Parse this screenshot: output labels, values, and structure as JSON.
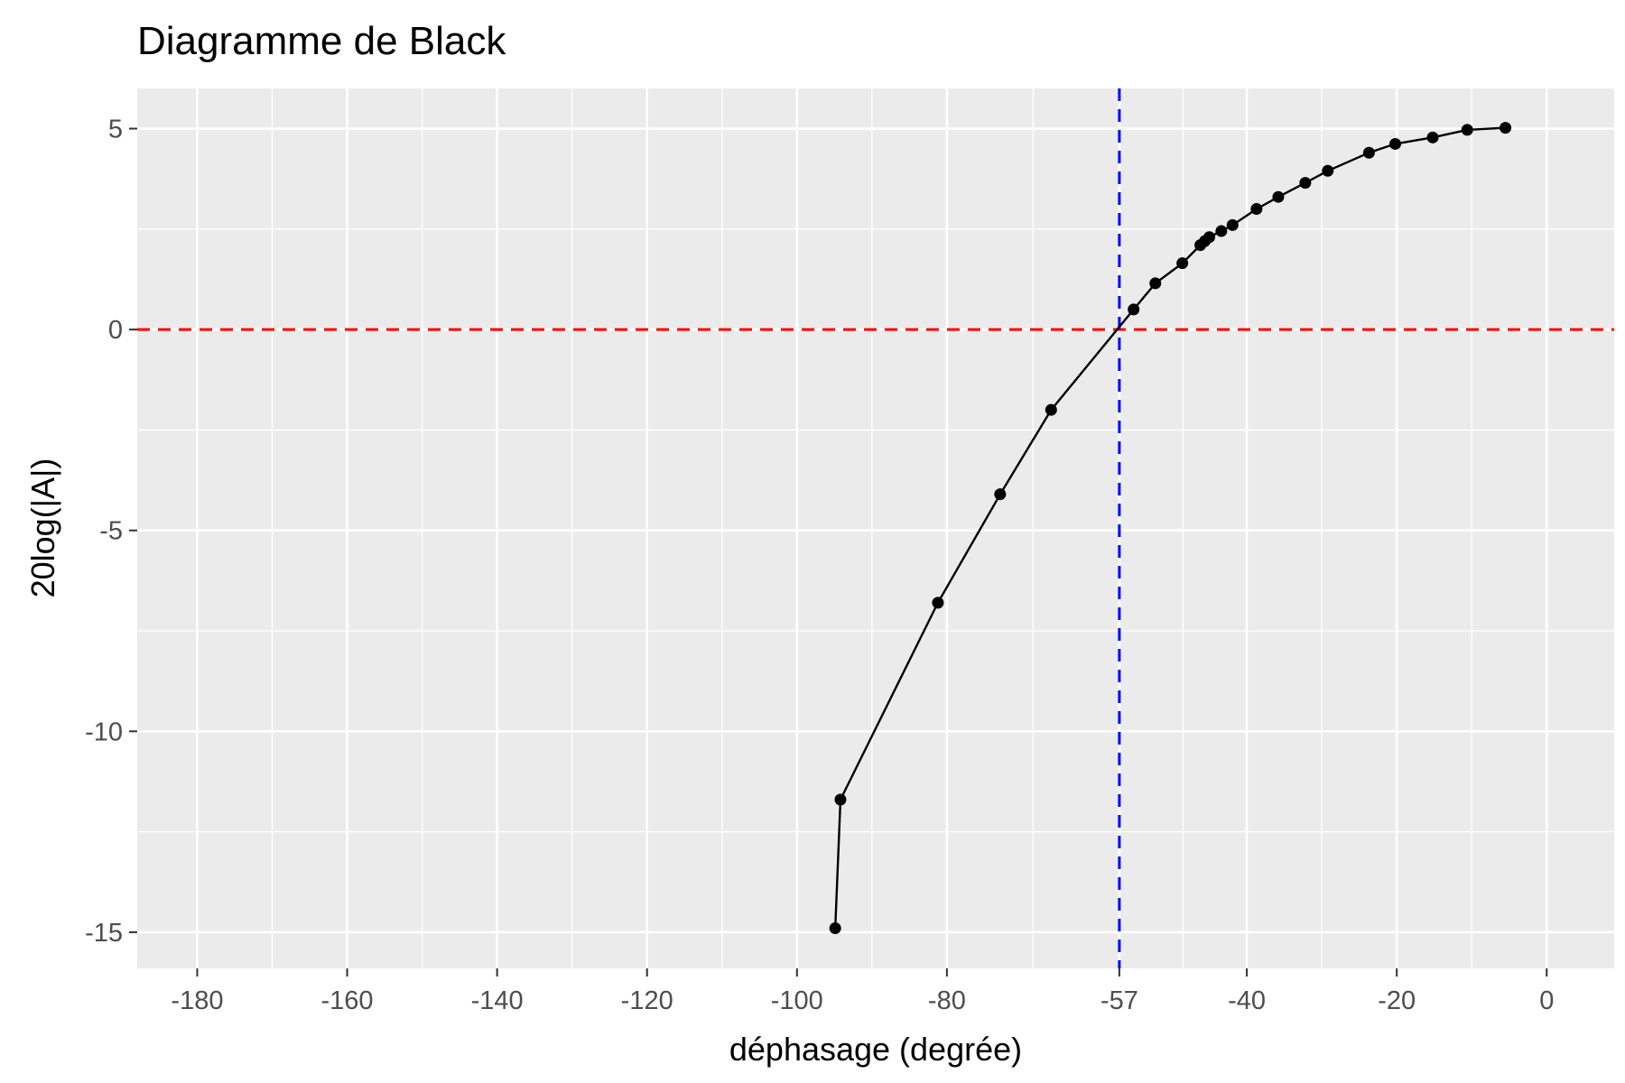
{
  "chart_data": {
    "type": "line",
    "title": "Diagramme de Black",
    "xlabel": "déphasage (degrée)",
    "ylabel": "20log(|A|)",
    "xlim": [
      -188,
      9
    ],
    "ylim": [
      -15.9,
      6.0
    ],
    "x_ticks": [
      -180,
      -160,
      -140,
      -120,
      -100,
      -80,
      -57,
      -40,
      -20,
      0
    ],
    "x_tick_labels": [
      "-180",
      "-160",
      "-140",
      "-120",
      "-100",
      "-80",
      "-57",
      "-40",
      "-20",
      "0"
    ],
    "x_minor_ticks": [
      -170,
      -150,
      -130,
      -110,
      -90,
      -68.5,
      -48.5,
      -30,
      -10
    ],
    "y_ticks": [
      -15,
      -10,
      -5,
      0,
      5
    ],
    "y_tick_labels": [
      "-15",
      "-10",
      "-5",
      "0",
      "5"
    ],
    "y_minor_ticks": [
      -12.5,
      -7.5,
      -2.5,
      2.5
    ],
    "grid": true,
    "background_color": "#ebebeb",
    "series": [
      {
        "color": "#000000",
        "x": [
          -94.9,
          -94.2,
          -81.2,
          -72.9,
          -66.1,
          -55.1,
          -52.2,
          -48.6,
          -46.2,
          -45.6,
          -45.0,
          -43.4,
          -41.9,
          -38.7,
          -35.8,
          -32.2,
          -29.2,
          -23.7,
          -20.2,
          -15.2,
          -10.6,
          -5.5
        ],
        "y": [
          -14.9,
          -11.7,
          -6.8,
          -4.1,
          -2.0,
          0.5,
          1.15,
          1.65,
          2.1,
          2.2,
          2.3,
          2.45,
          2.6,
          3.0,
          3.3,
          3.65,
          3.95,
          4.4,
          4.62,
          4.78,
          4.97,
          5.02
        ]
      }
    ],
    "reference_lines": [
      {
        "orientation": "horizontal",
        "value": 0,
        "color": "#ff0000",
        "style": "dashed"
      },
      {
        "orientation": "vertical",
        "value": -57,
        "color": "#0000ff",
        "style": "dashed"
      }
    ]
  }
}
